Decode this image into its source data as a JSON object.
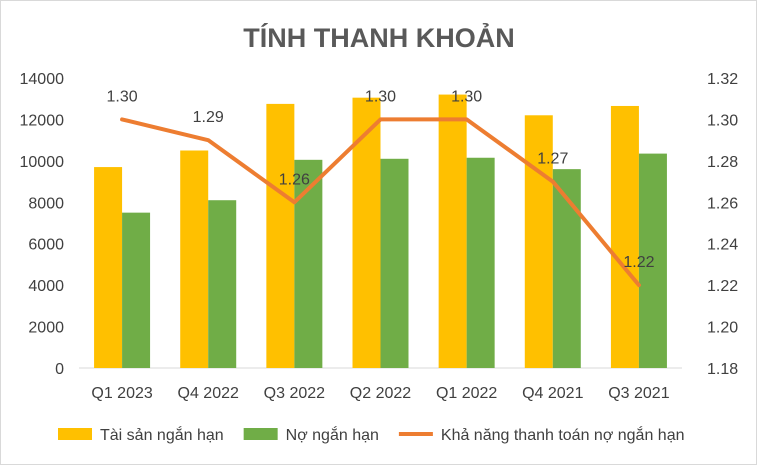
{
  "chart_data": {
    "type": "bar",
    "title": "TÍNH THANH KHOẢN",
    "categories": [
      "Q1 2023",
      "Q4 2022",
      "Q3 2022",
      "Q2 2022",
      "Q1 2022",
      "Q4 2021",
      "Q3 2021"
    ],
    "series": [
      {
        "name": "Tài sản ngắn hạn",
        "type": "bar",
        "axis": "left",
        "color": "#FFC000",
        "values": [
          9700,
          10500,
          12750,
          13050,
          13200,
          12200,
          12650
        ]
      },
      {
        "name": "Nợ ngắn hạn",
        "type": "bar",
        "axis": "left",
        "color": "#70AD47",
        "values": [
          7500,
          8100,
          10050,
          10100,
          10150,
          9600,
          10350
        ]
      },
      {
        "name": "Khả năng thanh toán nợ ngắn hạn",
        "type": "line",
        "axis": "right",
        "color": "#ED7D31",
        "values": [
          1.3,
          1.29,
          1.26,
          1.3,
          1.3,
          1.27,
          1.22
        ],
        "labels": [
          "1.30",
          "1.29",
          "1.26",
          "1.30",
          "1.30",
          "1.27",
          "1.22"
        ]
      }
    ],
    "y_left": {
      "min": 0,
      "max": 14000,
      "ticks": [
        "0",
        "2000",
        "4000",
        "6000",
        "8000",
        "10000",
        "12000",
        "14000"
      ]
    },
    "y_right": {
      "min": 1.18,
      "max": 1.32,
      "ticks": [
        "1.18",
        "1.20",
        "1.22",
        "1.24",
        "1.26",
        "1.28",
        "1.30",
        "1.32"
      ]
    },
    "grid": false,
    "legend": "bottom"
  }
}
